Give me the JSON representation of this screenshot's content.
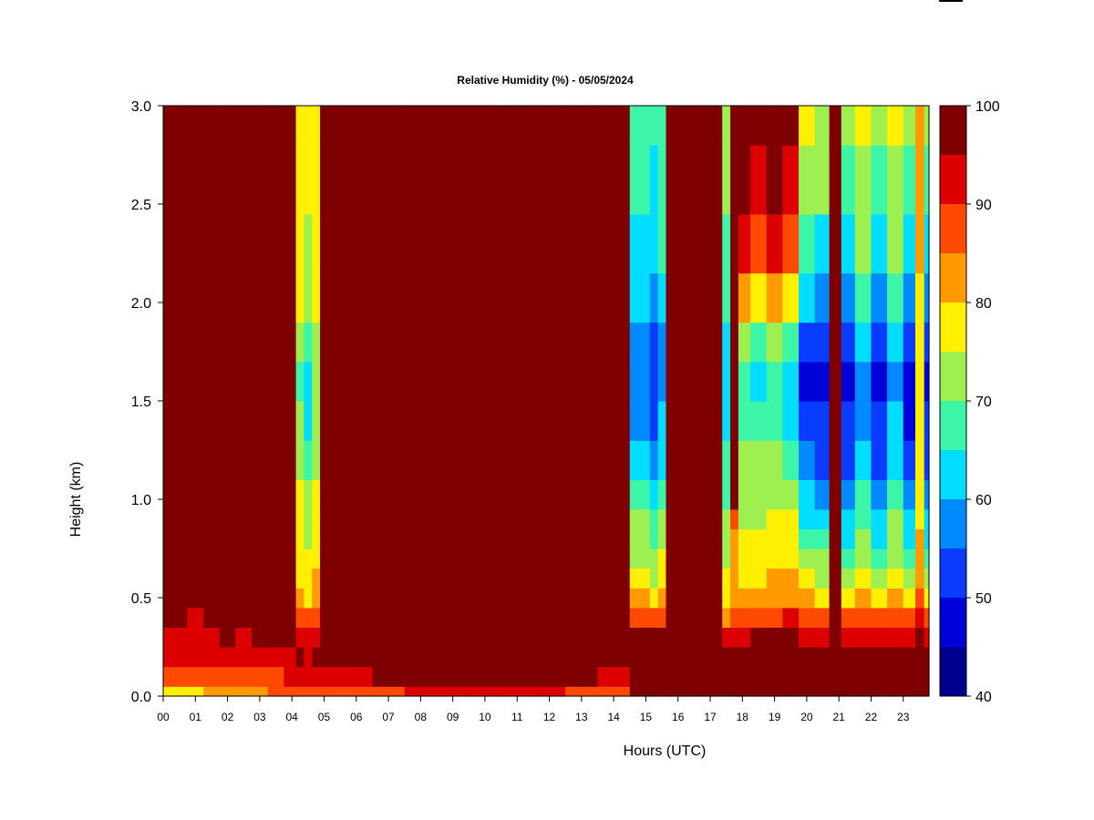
{
  "chart_data": {
    "type": "heatmap",
    "title": "Relative Humidity (%) - 05/05/2024",
    "xlabel": "Hours (UTC)",
    "ylabel": "Height (km)",
    "xlim": [
      0,
      23.8
    ],
    "ylim": [
      0,
      3.0
    ],
    "x_ticks": [
      "00",
      "01",
      "02",
      "03",
      "04",
      "05",
      "06",
      "07",
      "08",
      "09",
      "10",
      "11",
      "12",
      "13",
      "14",
      "15",
      "16",
      "17",
      "18",
      "19",
      "20",
      "21",
      "22",
      "23"
    ],
    "y_ticks": [
      "0.0",
      "0.5",
      "1.0",
      "1.5",
      "2.0",
      "2.5",
      "3.0"
    ],
    "colorbar": {
      "min": 40,
      "max": 100,
      "step": 5,
      "tick_labels": [
        "40",
        "50",
        "60",
        "70",
        "80",
        "90",
        "100"
      ],
      "colors": [
        "#00008f",
        "#0000d8",
        "#0a3cff",
        "#008aff",
        "#00ddff",
        "#3cf5a6",
        "#9ef050",
        "#ffef00",
        "#ff9a00",
        "#ff4a00",
        "#dd0000",
        "#7f0000"
      ]
    },
    "height_levels_km": [
      0.0,
      0.1,
      0.2,
      0.3,
      0.4,
      0.5,
      0.6,
      0.7,
      0.8,
      0.9,
      1.0,
      1.2,
      1.4,
      1.6,
      1.8,
      2.0,
      2.3,
      2.6,
      3.0
    ],
    "columns": [
      {
        "hour": 0.0,
        "rh": [
          75,
          86,
          91,
          94,
          96,
          97,
          98,
          99,
          100,
          100,
          100,
          100,
          100,
          100,
          100,
          100,
          100,
          100,
          100
        ]
      },
      {
        "hour": 0.5,
        "rh": [
          76,
          85,
          90,
          93,
          95,
          96,
          98,
          99,
          100,
          100,
          100,
          100,
          100,
          100,
          100,
          100,
          100,
          100,
          100
        ]
      },
      {
        "hour": 1.0,
        "rh": [
          78,
          86,
          90,
          92,
          93,
          95,
          96,
          98,
          99,
          100,
          100,
          100,
          100,
          100,
          100,
          100,
          100,
          100,
          100
        ]
      },
      {
        "hour": 1.5,
        "rh": [
          80,
          87,
          91,
          93,
          95,
          97,
          98,
          99,
          100,
          100,
          100,
          100,
          100,
          100,
          100,
          100,
          100,
          100,
          100
        ]
      },
      {
        "hour": 2.0,
        "rh": [
          83,
          88,
          92,
          95,
          97,
          98,
          99,
          100,
          100,
          100,
          100,
          100,
          100,
          100,
          100,
          100,
          100,
          100,
          100
        ]
      },
      {
        "hour": 2.5,
        "rh": [
          84,
          89,
          92,
          94,
          96,
          97,
          99,
          100,
          100,
          100,
          100,
          100,
          100,
          100,
          100,
          100,
          100,
          100,
          100
        ]
      },
      {
        "hour": 3.0,
        "rh": [
          84,
          89,
          93,
          95,
          97,
          98,
          99,
          100,
          100,
          100,
          100,
          100,
          100,
          100,
          100,
          100,
          100,
          100,
          100
        ]
      },
      {
        "hour": 3.5,
        "rh": [
          85,
          89,
          93,
          96,
          97,
          98,
          99,
          100,
          100,
          100,
          100,
          100,
          100,
          100,
          100,
          100,
          100,
          100,
          100
        ]
      },
      {
        "hour": 4.0,
        "rh": [
          87,
          91,
          94,
          97,
          98,
          99,
          100,
          100,
          100,
          100,
          100,
          100,
          100,
          100,
          100,
          100,
          100,
          100,
          100
        ]
      },
      {
        "hour": 4.25,
        "rh": [
          88,
          93,
          95,
          94,
          88,
          81,
          79,
          78,
          78,
          77,
          76,
          74,
          71,
          68,
          72,
          75,
          77,
          78,
          79
        ]
      },
      {
        "hour": 4.5,
        "rh": [
          88,
          92,
          94,
          92,
          85,
          78,
          76,
          75,
          73,
          72,
          70,
          66,
          63,
          61,
          66,
          70,
          73,
          75,
          77
        ]
      },
      {
        "hour": 4.75,
        "rh": [
          89,
          93,
          95,
          94,
          88,
          82,
          80,
          79,
          78,
          77,
          76,
          74,
          73,
          72,
          74,
          76,
          77,
          78,
          79
        ]
      },
      {
        "hour": 5.0,
        "rh": [
          89,
          94,
          97,
          99,
          100,
          100,
          100,
          100,
          100,
          100,
          100,
          100,
          100,
          100,
          100,
          100,
          100,
          100,
          100
        ]
      },
      {
        "hour": 6.0,
        "rh": [
          89,
          94,
          97,
          99,
          100,
          100,
          100,
          100,
          100,
          100,
          100,
          100,
          100,
          100,
          100,
          100,
          100,
          100,
          100
        ]
      },
      {
        "hour": 7.0,
        "rh": [
          89,
          95,
          98,
          100,
          100,
          100,
          100,
          100,
          100,
          100,
          100,
          100,
          100,
          100,
          100,
          100,
          100,
          100,
          100
        ]
      },
      {
        "hour": 8.0,
        "rh": [
          90,
          96,
          99,
          100,
          100,
          100,
          100,
          100,
          100,
          100,
          100,
          100,
          100,
          100,
          100,
          100,
          100,
          100,
          100
        ]
      },
      {
        "hour": 9.0,
        "rh": [
          92,
          97,
          100,
          100,
          100,
          100,
          100,
          100,
          100,
          100,
          100,
          100,
          100,
          100,
          100,
          100,
          100,
          100,
          100
        ]
      },
      {
        "hour": 10.0,
        "rh": [
          92,
          97,
          100,
          100,
          100,
          100,
          100,
          100,
          100,
          100,
          100,
          100,
          100,
          100,
          100,
          100,
          100,
          100,
          100
        ]
      },
      {
        "hour": 11.0,
        "rh": [
          91,
          97,
          100,
          100,
          100,
          100,
          100,
          100,
          100,
          100,
          100,
          100,
          100,
          100,
          100,
          100,
          100,
          100,
          100
        ]
      },
      {
        "hour": 12.0,
        "rh": [
          90,
          96,
          100,
          100,
          100,
          100,
          100,
          100,
          100,
          100,
          100,
          100,
          100,
          100,
          100,
          100,
          100,
          100,
          100
        ]
      },
      {
        "hour": 13.0,
        "rh": [
          89,
          95,
          99,
          100,
          100,
          100,
          100,
          100,
          100,
          100,
          100,
          100,
          100,
          100,
          100,
          100,
          100,
          100,
          100
        ]
      },
      {
        "hour": 14.0,
        "rh": [
          88,
          93,
          98,
          100,
          100,
          100,
          100,
          100,
          100,
          100,
          100,
          100,
          100,
          100,
          100,
          100,
          100,
          100,
          100
        ]
      },
      {
        "hour": 15.0,
        "rh": [
          96,
          99,
          98,
          95,
          86,
          80,
          77,
          74,
          72,
          70,
          68,
          63,
          58,
          55,
          56,
          60,
          63,
          65,
          67
        ]
      },
      {
        "hour": 15.25,
        "rh": [
          97,
          99,
          98,
          95,
          85,
          78,
          74,
          70,
          67,
          65,
          62,
          57,
          52,
          51,
          53,
          57,
          61,
          63,
          66
        ]
      },
      {
        "hour": 15.5,
        "rh": [
          97,
          99,
          98,
          96,
          87,
          82,
          78,
          75,
          72,
          70,
          68,
          64,
          60,
          58,
          59,
          62,
          65,
          67,
          69
        ]
      },
      {
        "hour": 15.75,
        "rh": [
          97,
          99,
          100,
          100,
          100,
          100,
          100,
          100,
          100,
          100,
          100,
          100,
          100,
          100,
          100,
          100,
          100,
          100,
          100
        ]
      },
      {
        "hour": 16.5,
        "rh": [
          97,
          99,
          100,
          100,
          100,
          100,
          100,
          100,
          100,
          100,
          100,
          100,
          100,
          100,
          100,
          100,
          100,
          100,
          100
        ]
      },
      {
        "hour": 17.25,
        "rh": [
          96,
          99,
          100,
          100,
          100,
          100,
          100,
          100,
          100,
          100,
          100,
          100,
          100,
          100,
          100,
          100,
          100,
          100,
          100
        ]
      },
      {
        "hour": 17.5,
        "rh": [
          97,
          99,
          98,
          92,
          84,
          78,
          76,
          74,
          72,
          70,
          68,
          66,
          64,
          62,
          64,
          66,
          68,
          70,
          72
        ]
      },
      {
        "hour": 17.75,
        "rh": [
          98,
          100,
          97,
          91,
          85,
          82,
          80,
          80,
          84,
          89,
          95,
          98,
          99,
          99,
          99,
          100,
          100,
          100,
          100
        ]
      },
      {
        "hour": 18.0,
        "rh": [
          98,
          100,
          98,
          94,
          87,
          82,
          78,
          76,
          75,
          74,
          72,
          70,
          68,
          66,
          70,
          80,
          90,
          96,
          98
        ]
      },
      {
        "hour": 18.5,
        "rh": [
          98,
          100,
          99,
          95,
          88,
          82,
          79,
          78,
          76,
          74,
          72,
          70,
          66,
          64,
          68,
          78,
          88,
          94,
          97
        ]
      },
      {
        "hour": 19.0,
        "rh": [
          99,
          100,
          99,
          95,
          89,
          83,
          80,
          79,
          77,
          75,
          73,
          70,
          67,
          65,
          70,
          80,
          90,
          95,
          98
        ]
      },
      {
        "hour": 19.5,
        "rh": [
          99,
          100,
          99,
          96,
          90,
          84,
          80,
          79,
          77,
          75,
          72,
          68,
          64,
          63,
          68,
          78,
          88,
          93,
          96
        ]
      },
      {
        "hour": 20.0,
        "rh": [
          99,
          100,
          99,
          94,
          87,
          80,
          76,
          72,
          68,
          64,
          60,
          55,
          50,
          48,
          52,
          60,
          68,
          74,
          78
        ]
      },
      {
        "hour": 20.5,
        "rh": [
          99,
          100,
          99,
          94,
          86,
          79,
          74,
          70,
          66,
          62,
          58,
          54,
          50,
          49,
          53,
          58,
          64,
          70,
          74
        ]
      },
      {
        "hour": 20.9,
        "rh": [
          100,
          100,
          100,
          100,
          100,
          100,
          100,
          100,
          100,
          100,
          100,
          100,
          100,
          100,
          100,
          100,
          100,
          100,
          100
        ]
      },
      {
        "hour": 21.25,
        "rh": [
          99,
          100,
          98,
          93,
          85,
          78,
          72,
          68,
          64,
          61,
          58,
          54,
          50,
          49,
          53,
          58,
          63,
          68,
          72
        ]
      },
      {
        "hour": 21.75,
        "rh": [
          99,
          100,
          98,
          93,
          86,
          80,
          75,
          72,
          70,
          68,
          66,
          62,
          58,
          56,
          60,
          65,
          70,
          74,
          77
        ]
      },
      {
        "hour": 22.25,
        "rh": [
          99,
          100,
          98,
          93,
          85,
          78,
          72,
          68,
          64,
          61,
          58,
          54,
          50,
          49,
          53,
          58,
          63,
          68,
          72
        ]
      },
      {
        "hour": 22.75,
        "rh": [
          99,
          100,
          98,
          93,
          86,
          80,
          76,
          74,
          72,
          70,
          68,
          64,
          60,
          58,
          62,
          66,
          70,
          74,
          77
        ]
      },
      {
        "hour": 23.25,
        "rh": [
          99,
          100,
          98,
          93,
          85,
          77,
          72,
          68,
          64,
          61,
          57,
          53,
          49,
          48,
          52,
          57,
          62,
          67,
          71
        ]
      },
      {
        "hour": 23.5,
        "rh": [
          99,
          100,
          98,
          95,
          90,
          86,
          84,
          82,
          80,
          79,
          78,
          77,
          76,
          76,
          77,
          78,
          80,
          82,
          84
        ]
      },
      {
        "hour": 23.8,
        "rh": [
          99,
          100,
          98,
          93,
          85,
          78,
          72,
          68,
          64,
          61,
          58,
          54,
          50,
          49,
          53,
          58,
          63,
          68,
          72
        ]
      }
    ]
  }
}
